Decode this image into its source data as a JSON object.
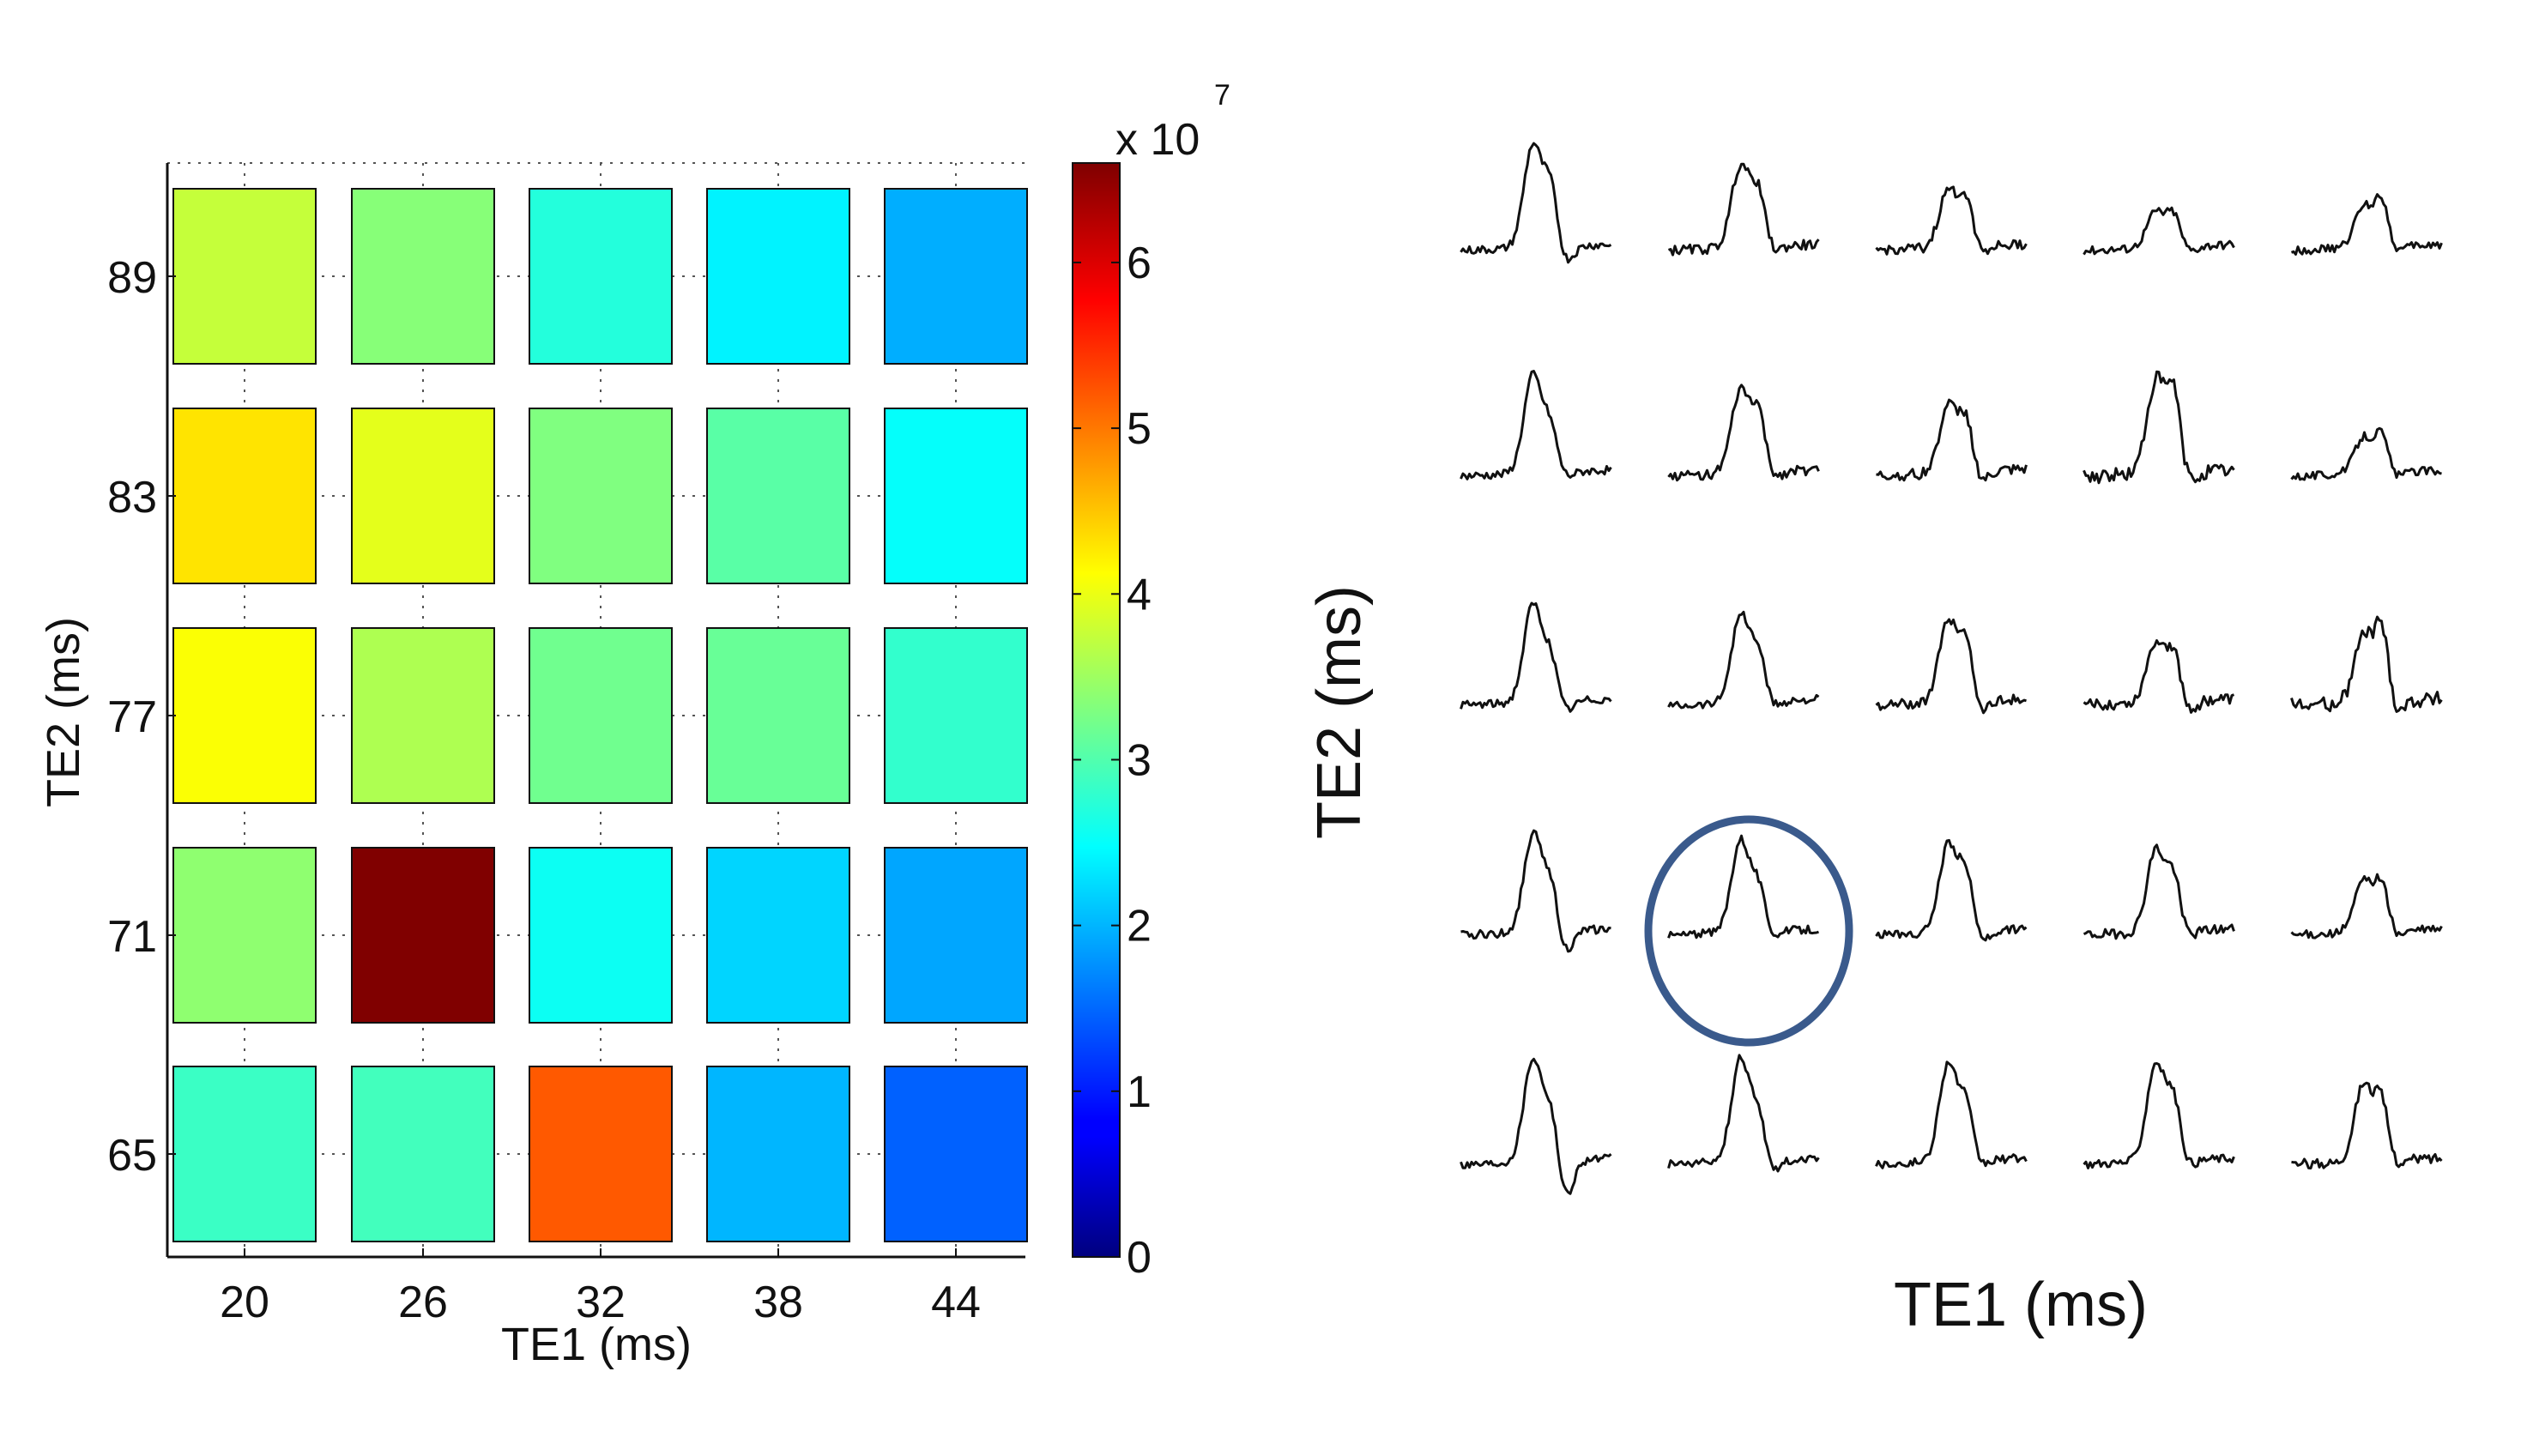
{
  "chart_data": [
    {
      "type": "heatmap",
      "xlabel": "TE1 (ms)",
      "ylabel": "TE2 (ms)",
      "x": [
        20,
        26,
        32,
        38,
        44
      ],
      "x_tick_labels": [
        "20",
        "26",
        "32",
        "38",
        "44"
      ],
      "y": [
        65,
        71,
        77,
        83,
        89
      ],
      "y_tick_labels": [
        "65",
        "71",
        "77",
        "83",
        "89"
      ],
      "values_unit_label": "x 10",
      "values_unit_exponent": "7",
      "colorbar": {
        "colormap": "jet",
        "range": [
          0,
          6.6
        ],
        "ticks": [
          0,
          1,
          2,
          3,
          4,
          5,
          6
        ],
        "tick_labels": [
          "0",
          "1",
          "2",
          "3",
          "4",
          "5",
          "6"
        ]
      },
      "grid": true,
      "values": [
        [
          2.85,
          2.9,
          5.2,
          2.0,
          1.45
        ],
        [
          3.4,
          6.6,
          2.55,
          2.2,
          1.9
        ],
        [
          4.1,
          3.6,
          3.2,
          3.15,
          2.8
        ],
        [
          4.3,
          3.95,
          3.3,
          3.05,
          2.5
        ],
        [
          3.75,
          3.35,
          2.7,
          2.4,
          1.95
        ]
      ]
    },
    {
      "type": "line",
      "title": "",
      "xlabel": "TE1 (ms)",
      "ylabel": "TE2 (ms)",
      "layout": "5x5 grid of spectra",
      "columns": [
        "20",
        "26",
        "32",
        "38",
        "44"
      ],
      "rows": [
        "89",
        "83",
        "77",
        "71",
        "65"
      ],
      "highlight": {
        "row": "71",
        "column": "26",
        "color": "#3a5a8c"
      },
      "spectra": [
        [
          {
            "peaks": [
              1.0,
              0.55
            ],
            "noise": 0.05,
            "dip": 0.15
          },
          {
            "peaks": [
              0.8,
              0.5
            ],
            "noise": 0.06,
            "dip": 0.05
          },
          {
            "peaks": [
              0.55,
              0.45
            ],
            "noise": 0.06,
            "dip": 0.05
          },
          {
            "peaks": [
              0.35,
              0.3
            ],
            "noise": 0.05,
            "dip": 0.05
          },
          {
            "peaks": [
              0.4,
              0.45
            ],
            "noise": 0.05,
            "dip": 0.05
          }
        ],
        [
          {
            "peaks": [
              0.95,
              0.4
            ],
            "noise": 0.05,
            "dip": 0.05
          },
          {
            "peaks": [
              0.8,
              0.55
            ],
            "noise": 0.06,
            "dip": 0.05
          },
          {
            "peaks": [
              0.65,
              0.5
            ],
            "noise": 0.07,
            "dip": 0.1
          },
          {
            "peaks": [
              0.9,
              0.75
            ],
            "noise": 0.09,
            "dip": 0.1
          },
          {
            "peaks": [
              0.35,
              0.35
            ],
            "noise": 0.05,
            "dip": 0.05
          }
        ],
        [
          {
            "peaks": [
              0.95,
              0.4
            ],
            "noise": 0.05,
            "dip": 0.1
          },
          {
            "peaks": [
              0.85,
              0.45
            ],
            "noise": 0.05,
            "dip": 0.05
          },
          {
            "peaks": [
              0.8,
              0.55
            ],
            "noise": 0.06,
            "dip": 0.1
          },
          {
            "peaks": [
              0.6,
              0.45
            ],
            "noise": 0.07,
            "dip": 0.1
          },
          {
            "peaks": [
              0.65,
              0.7
            ],
            "noise": 0.09,
            "dip": 0.1
          }
        ],
        [
          {
            "peaks": [
              0.95,
              0.45
            ],
            "noise": 0.05,
            "dip": 0.2
          },
          {
            "peaks": [
              0.9,
              0.4
            ],
            "noise": 0.05,
            "dip": 0.05
          },
          {
            "peaks": [
              0.85,
              0.55
            ],
            "noise": 0.05,
            "dip": 0.1
          },
          {
            "peaks": [
              0.8,
              0.5
            ],
            "noise": 0.06,
            "dip": 0.05
          },
          {
            "peaks": [
              0.5,
              0.45
            ],
            "noise": 0.05,
            "dip": 0.05
          }
        ],
        [
          {
            "peaks": [
              1.0,
              0.45
            ],
            "noise": 0.05,
            "dip": 0.35
          },
          {
            "peaks": [
              1.0,
              0.4
            ],
            "noise": 0.05,
            "dip": 0.1
          },
          {
            "peaks": [
              0.95,
              0.5
            ],
            "noise": 0.05,
            "dip": 0.05
          },
          {
            "peaks": [
              0.95,
              0.55
            ],
            "noise": 0.05,
            "dip": 0.05
          },
          {
            "peaks": [
              0.75,
              0.55
            ],
            "noise": 0.06,
            "dip": 0.05
          }
        ]
      ]
    }
  ]
}
